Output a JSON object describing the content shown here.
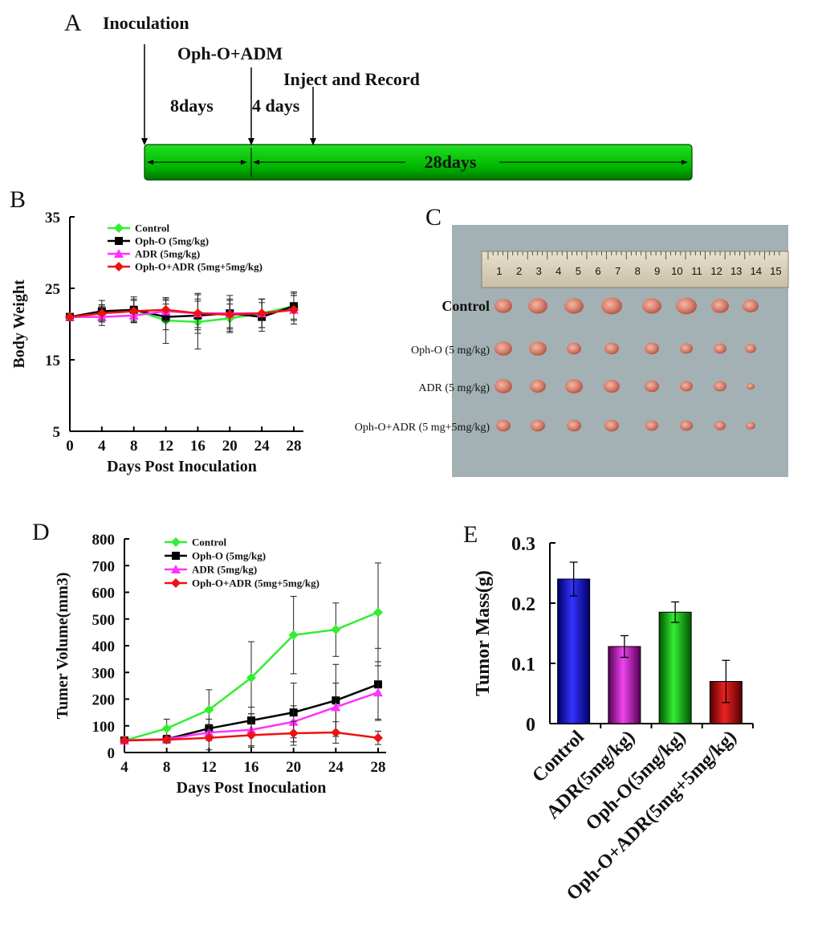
{
  "panels": {
    "a": "A",
    "b": "B",
    "c": "C",
    "d": "D",
    "e": "E"
  },
  "timeline": {
    "inoculation": "Inoculation",
    "treatment": "Oph-O+ADM",
    "inject": "Inject and Record",
    "d8": "8days",
    "d4": "4 days",
    "d28": "28days"
  },
  "photo": {
    "rows": [
      "Control",
      "Oph-O (5 mg/kg)",
      "ADR (5 mg/kg)",
      "Oph-O+ADR (5 mg+5mg/kg)"
    ],
    "ruler": [
      "1",
      "2",
      "3",
      "4",
      "5",
      "6",
      "7",
      "8",
      "9",
      "10",
      "11",
      "12",
      "13",
      "14",
      "15"
    ]
  },
  "colors": {
    "control": "#33ee33",
    "ophO": "#000000",
    "adr": "#ff33ff",
    "combo": "#ee1111",
    "bar_blue": "#1a1acc",
    "bar_pink": "#cc33cc",
    "bar_green": "#22cc22",
    "bar_red": "#cc1111"
  },
  "chart_data": [
    {
      "id": "body-weight",
      "type": "line",
      "title": "",
      "xlabel": "Days Post Inoculation",
      "ylabel": "Body Weight",
      "x": [
        0,
        4,
        8,
        12,
        16,
        20,
        24,
        28
      ],
      "xticks": [
        "0",
        "4",
        "8",
        "12",
        "16",
        "20",
        "24",
        "28"
      ],
      "yticks": [
        "5",
        "15",
        "25",
        "35"
      ],
      "ylim": [
        5,
        35
      ],
      "xlim": [
        0,
        28
      ],
      "legend": [
        "Control",
        "Oph-O (5mg/kg)",
        "ADR (5mg/kg)",
        "Oph-O+ADR (5mg+5mg/kg)"
      ],
      "series": [
        {
          "name": "Control",
          "values": [
            21,
            21.5,
            22,
            20.5,
            20.3,
            20.8,
            21.5,
            22.5
          ],
          "err": [
            0.5,
            1.2,
            1.5,
            3.2,
            3.8,
            2.0,
            2.0,
            1.8
          ]
        },
        {
          "name": "Oph-O (5mg/kg)",
          "values": [
            21,
            21.8,
            22,
            21,
            21.2,
            21.5,
            21,
            22.5
          ],
          "err": [
            0.5,
            1.5,
            1.8,
            1.8,
            2.0,
            2.0,
            2.0,
            2.0
          ]
        },
        {
          "name": "ADR (5mg/kg)",
          "values": [
            21,
            21,
            21.2,
            21.8,
            21.5,
            21.5,
            21.5,
            22
          ],
          "err": [
            0.5,
            1.2,
            1.0,
            1.5,
            2.8,
            2.5,
            2.0,
            2.0
          ]
        },
        {
          "name": "Oph-O+ADR (5mg+5mg/kg)",
          "values": [
            21,
            21.5,
            21.8,
            22,
            21.5,
            21.3,
            21.5,
            22
          ],
          "err": [
            0.5,
            1.0,
            1.5,
            1.5,
            2.0,
            2.0,
            2.0,
            2.0
          ]
        }
      ]
    },
    {
      "id": "tumor-volume",
      "type": "line",
      "title": "",
      "xlabel": "Days Post Inoculation",
      "ylabel": "Tumer Volume(mm3)",
      "x": [
        4,
        8,
        12,
        16,
        20,
        24,
        28
      ],
      "xticks": [
        "4",
        "8",
        "12",
        "16",
        "20",
        "24",
        "28"
      ],
      "yticks": [
        "0",
        "100",
        "200",
        "300",
        "400",
        "500",
        "600",
        "700",
        "800"
      ],
      "ylim": [
        0,
        800
      ],
      "xlim": [
        4,
        28
      ],
      "legend": [
        "Control",
        "Oph-O (5mg/kg)",
        "ADR (5mg/kg)",
        "Oph-O+ADR (5mg+5mg/kg)"
      ],
      "series": [
        {
          "name": "Control",
          "values": [
            45,
            90,
            160,
            280,
            440,
            460,
            525
          ],
          "err": [
            10,
            35,
            75,
            135,
            145,
            100,
            185
          ]
        },
        {
          "name": "Oph-O (5mg/kg)",
          "values": [
            45,
            50,
            90,
            120,
            150,
            195,
            255
          ],
          "err": [
            10,
            15,
            35,
            50,
            110,
            135,
            135
          ]
        },
        {
          "name": "ADR (5mg/kg)",
          "values": [
            45,
            50,
            75,
            85,
            115,
            170,
            225
          ],
          "err": [
            10,
            12,
            30,
            60,
            60,
            90,
            100
          ]
        },
        {
          "name": "Oph-O+ADR (5mg+5mg/kg)",
          "values": [
            45,
            48,
            55,
            65,
            72,
            75,
            55
          ],
          "err": [
            8,
            10,
            45,
            45,
            45,
            40,
            25
          ]
        }
      ]
    },
    {
      "id": "tumor-mass",
      "type": "bar",
      "title": "",
      "xlabel": "",
      "ylabel": "Tumor Mass(g)",
      "categories": [
        "Control",
        "ADR(5mg/kg)",
        "Oph-O(5mg/kg)",
        "Oph-O+ADR(5mg+5mg/kg)"
      ],
      "values": [
        0.24,
        0.128,
        0.185,
        0.07
      ],
      "err": [
        0.028,
        0.018,
        0.017,
        0.035
      ],
      "yticks": [
        "0",
        "0.1",
        "0.2",
        "0.3"
      ],
      "ylim": [
        0,
        0.3
      ]
    }
  ]
}
